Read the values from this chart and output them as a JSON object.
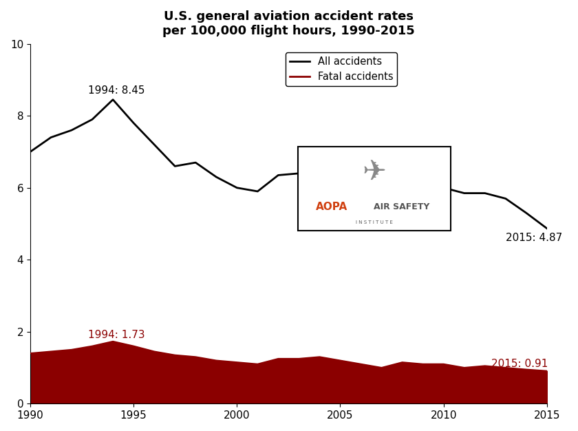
{
  "title": "U.S. general aviation accident rates\nper 100,000 flight hours, 1990-2015",
  "years": [
    1990,
    1991,
    1992,
    1993,
    1994,
    1995,
    1996,
    1997,
    1998,
    1999,
    2000,
    2001,
    2002,
    2003,
    2004,
    2005,
    2006,
    2007,
    2008,
    2009,
    2010,
    2011,
    2012,
    2013,
    2014,
    2015
  ],
  "all_accidents": [
    7.0,
    7.4,
    7.6,
    7.9,
    8.45,
    7.8,
    7.2,
    6.6,
    6.7,
    6.3,
    6.0,
    5.9,
    6.35,
    6.4,
    6.5,
    6.2,
    6.1,
    5.35,
    5.8,
    5.85,
    6.0,
    5.85,
    5.85,
    5.7,
    5.3,
    4.87
  ],
  "fatal_accidents": [
    1.4,
    1.45,
    1.5,
    1.6,
    1.73,
    1.6,
    1.45,
    1.35,
    1.3,
    1.2,
    1.15,
    1.1,
    1.25,
    1.25,
    1.3,
    1.2,
    1.1,
    1.0,
    1.15,
    1.1,
    1.1,
    1.0,
    1.05,
    1.0,
    0.95,
    0.91
  ],
  "all_color": "#000000",
  "fatal_color": "#8B0000",
  "fatal_fill_color": "#8B0000",
  "bg_color": "#ffffff",
  "ylim": [
    0,
    10
  ],
  "xlim": [
    1990,
    2015
  ],
  "yticks": [
    0,
    2,
    4,
    6,
    8,
    10
  ],
  "xticks": [
    1990,
    1995,
    2000,
    2005,
    2010,
    2015
  ],
  "annotation_1994_all": "1994: 8.45",
  "annotation_2015_all": "2015: 4.87",
  "annotation_1994_fatal": "1994: 1.73",
  "annotation_2015_fatal": "2015: 0.91",
  "legend_all": "All accidents",
  "legend_fatal": "Fatal accidents",
  "title_fontsize": 13,
  "tick_fontsize": 11,
  "annot_fontsize": 11,
  "legend_fontsize": 10.5
}
